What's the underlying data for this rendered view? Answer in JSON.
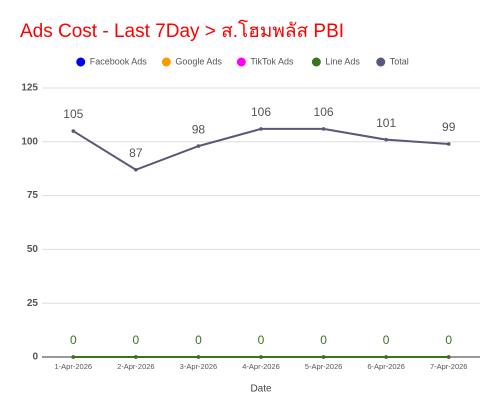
{
  "chart_data": {
    "type": "line",
    "title": "Ads Cost - Last 7Day > ส.โฮมพลัส PBI",
    "x_label": "Date",
    "categories": [
      "1-Apr-2026",
      "2-Apr-2026",
      "3-Apr-2026",
      "4-Apr-2026",
      "5-Apr-2026",
      "6-Apr-2026",
      "7-Apr-2026"
    ],
    "series": [
      {
        "name": "Facebook Ads",
        "color": "#0000ff",
        "values": [
          0,
          0,
          0,
          0,
          0,
          0,
          0
        ],
        "data_labels": false
      },
      {
        "name": "Google Ads",
        "color": "#ff9900",
        "values": [
          0,
          0,
          0,
          0,
          0,
          0,
          0
        ],
        "data_labels": false
      },
      {
        "name": "TikTok Ads",
        "color": "#ff00ff",
        "values": [
          0,
          0,
          0,
          0,
          0,
          0,
          0
        ],
        "data_labels": false
      },
      {
        "name": "Line Ads",
        "color": "#38761d",
        "values": [
          0,
          0,
          0,
          0,
          0,
          0,
          0
        ],
        "data_labels": true
      },
      {
        "name": "Total",
        "color": "#58587a",
        "values": [
          105,
          87,
          98,
          106,
          106,
          101,
          99
        ],
        "data_labels": true
      }
    ],
    "ylim": [
      0,
      125
    ],
    "yticks": [
      0,
      25,
      50,
      75,
      100,
      125
    ],
    "grid": true
  }
}
